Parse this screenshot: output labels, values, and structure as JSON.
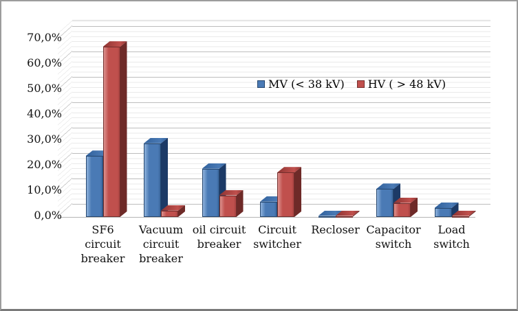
{
  "frame": {
    "background": "#ffffff",
    "border_color": "#9c9c9c"
  },
  "chart_data": {
    "type": "bar",
    "variant": "3d-clustered-column",
    "title": "",
    "xlabel": "",
    "ylabel": "",
    "categories": [
      "SF6 circuit breaker",
      "Vacuum circuit breaker",
      "oil circuit breaker",
      "Circuit switcher",
      "Recloser",
      "Capacitor switch",
      "Load switch"
    ],
    "category_label_lines": [
      [
        "SF6",
        "circuit",
        "breaker"
      ],
      [
        "Vacuum",
        "circuit",
        "breaker"
      ],
      [
        "oil circuit",
        "breaker"
      ],
      [
        "Circuit",
        "switcher"
      ],
      [
        "Recloser"
      ],
      [
        "Capacitor",
        "switch"
      ],
      [
        "Load",
        "switch"
      ]
    ],
    "series": [
      {
        "name": "MV (< 38 kV)",
        "values": [
          24,
          29,
          19,
          6,
          0.3,
          11,
          3.5
        ],
        "colors": {
          "front": "#4a7ab5",
          "light": "#8fb2dc",
          "dark_edge": "#3a669c",
          "top": "#31619c",
          "side": "#1c3a66",
          "border": "#24466e"
        }
      },
      {
        "name": "HV ( > 48 kV)",
        "values": [
          67,
          2.5,
          8.5,
          17.5,
          0.3,
          5.5,
          0.4
        ],
        "colors": {
          "front": "#c0504d",
          "light": "#dc928f",
          "dark_edge": "#a84341",
          "top": "#8e3432",
          "side": "#6e2a28",
          "border": "#732e2c"
        }
      }
    ],
    "y_axis": {
      "min": 0,
      "max": 70,
      "major_step": 10,
      "minor_step": 2,
      "tick_labels": [
        "0,0%",
        "10,0%",
        "20,0%",
        "30,0%",
        "40,0%",
        "50,0%",
        "60,0%",
        "70,0%"
      ]
    },
    "grid": {
      "major_color": "#bdbdbd",
      "minor_color": "#e9e9e9",
      "floor_edge_color": "#b3b3b3"
    },
    "legend": {
      "position": "inside-top-center"
    }
  }
}
